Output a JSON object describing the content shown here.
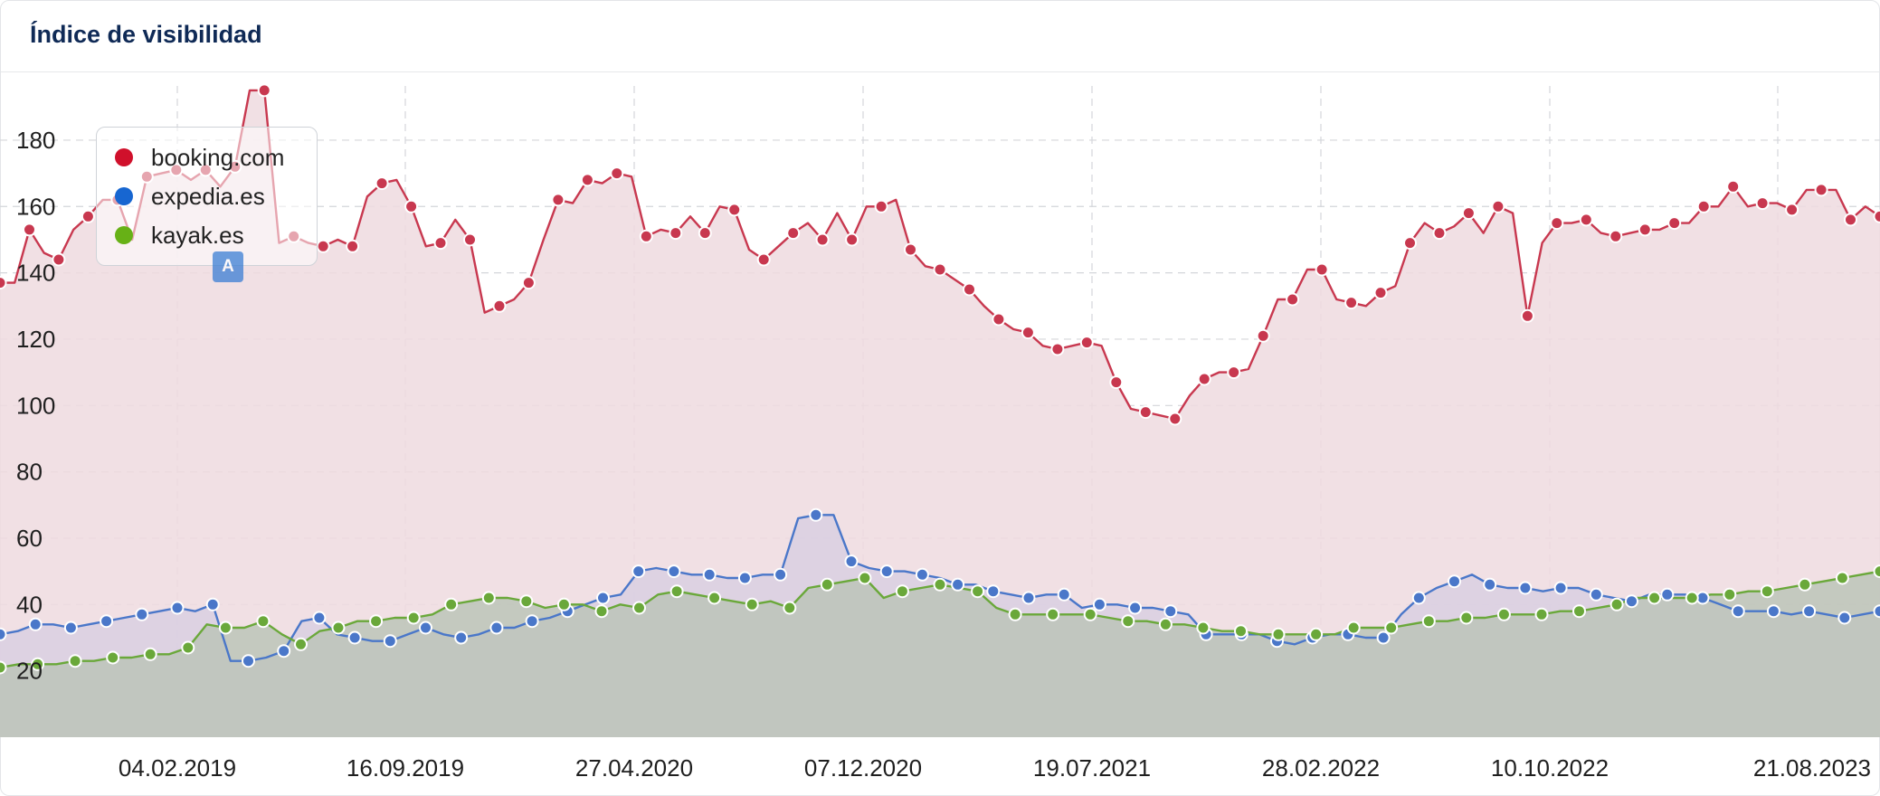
{
  "title": "Índice de visibilidad",
  "annotation_label": "A",
  "colors": {
    "booking": "#c8384f",
    "expedia": "#4a77c9",
    "kayak": "#6aa83a",
    "booking_fill": "#efdadf",
    "expedia_fill": "#d9cfe2",
    "kayak_fill": "#bcc4b9"
  },
  "chart_data": {
    "type": "area",
    "title": "Índice de visibilidad",
    "xlabel": "",
    "ylabel": "",
    "ylim": [
      0,
      200
    ],
    "yticks": [
      20,
      40,
      60,
      80,
      100,
      120,
      140,
      160,
      180
    ],
    "x_tick_labels": [
      "04.02.2019",
      "16.09.2019",
      "27.04.2020",
      "07.12.2020",
      "19.07.2021",
      "28.02.2022",
      "10.10.2022",
      "21.08.2023"
    ],
    "grid": true,
    "legend_position": "top-left",
    "series": [
      {
        "name": "booking.com",
        "values": [
          137,
          137,
          153,
          146,
          144,
          153,
          157,
          162,
          162,
          150,
          169,
          170,
          171,
          168,
          171,
          166,
          172,
          195,
          195,
          149,
          151,
          149,
          148,
          150,
          148,
          163,
          167,
          168,
          160,
          148,
          149,
          156,
          150,
          128,
          130,
          132,
          137,
          150,
          162,
          161,
          168,
          167,
          170,
          169,
          151,
          153,
          152,
          157,
          152,
          160,
          159,
          147,
          144,
          148,
          152,
          155,
          150,
          158,
          150,
          160,
          160,
          162,
          147,
          142,
          141,
          138,
          135,
          130,
          126,
          123,
          122,
          118,
          117,
          118,
          119,
          118,
          107,
          99,
          98,
          97,
          96,
          103,
          108,
          110,
          110,
          111,
          121,
          132,
          132,
          141,
          141,
          132,
          131,
          130,
          134,
          136,
          149,
          155,
          152,
          154,
          158,
          152,
          160,
          158,
          127,
          149,
          155,
          155,
          156,
          152,
          151,
          152,
          153,
          153,
          155,
          155,
          160,
          160,
          166,
          160,
          161,
          161,
          159,
          165,
          165,
          165,
          156,
          160,
          157
        ],
        "color": "#c8384f"
      },
      {
        "name": "expedia.es",
        "values": [
          31,
          32,
          34,
          34,
          33,
          34,
          35,
          36,
          37,
          38,
          39,
          38,
          40,
          23,
          23,
          24,
          26,
          35,
          36,
          31,
          30,
          29,
          29,
          31,
          33,
          31,
          30,
          31,
          33,
          33,
          35,
          36,
          38,
          40,
          42,
          43,
          50,
          51,
          50,
          49,
          49,
          48,
          48,
          49,
          49,
          66,
          67,
          67,
          53,
          51,
          50,
          50,
          49,
          48,
          46,
          46,
          44,
          43,
          42,
          43,
          43,
          39,
          40,
          40,
          39,
          39,
          38,
          37,
          31,
          31,
          31,
          31,
          29,
          28,
          30,
          31,
          31,
          30,
          30,
          37,
          42,
          45,
          47,
          49,
          46,
          45,
          45,
          44,
          45,
          45,
          43,
          42,
          41,
          43,
          43,
          43,
          42,
          40,
          38,
          38,
          38,
          37,
          38,
          37,
          36,
          37,
          38
        ],
        "color": "#4a77c9"
      },
      {
        "name": "kayak.es",
        "values": [
          21,
          22,
          22,
          22,
          23,
          23,
          24,
          24,
          25,
          25,
          27,
          34,
          33,
          33,
          35,
          31,
          28,
          32,
          33,
          35,
          35,
          36,
          36,
          37,
          40,
          41,
          42,
          42,
          41,
          39,
          40,
          40,
          38,
          40,
          39,
          43,
          44,
          43,
          42,
          41,
          40,
          41,
          39,
          45,
          46,
          47,
          48,
          42,
          44,
          45,
          46,
          45,
          44,
          39,
          37,
          37,
          37,
          37,
          37,
          36,
          35,
          35,
          34,
          34,
          33,
          32,
          32,
          31,
          31,
          31,
          31,
          31,
          33,
          33,
          33,
          34,
          35,
          35,
          36,
          36,
          37,
          37,
          37,
          38,
          38,
          39,
          40,
          42,
          42,
          42,
          42,
          43,
          43,
          44,
          44,
          45,
          46,
          47,
          48,
          49,
          50
        ],
        "color": "#6aa83a"
      }
    ]
  }
}
